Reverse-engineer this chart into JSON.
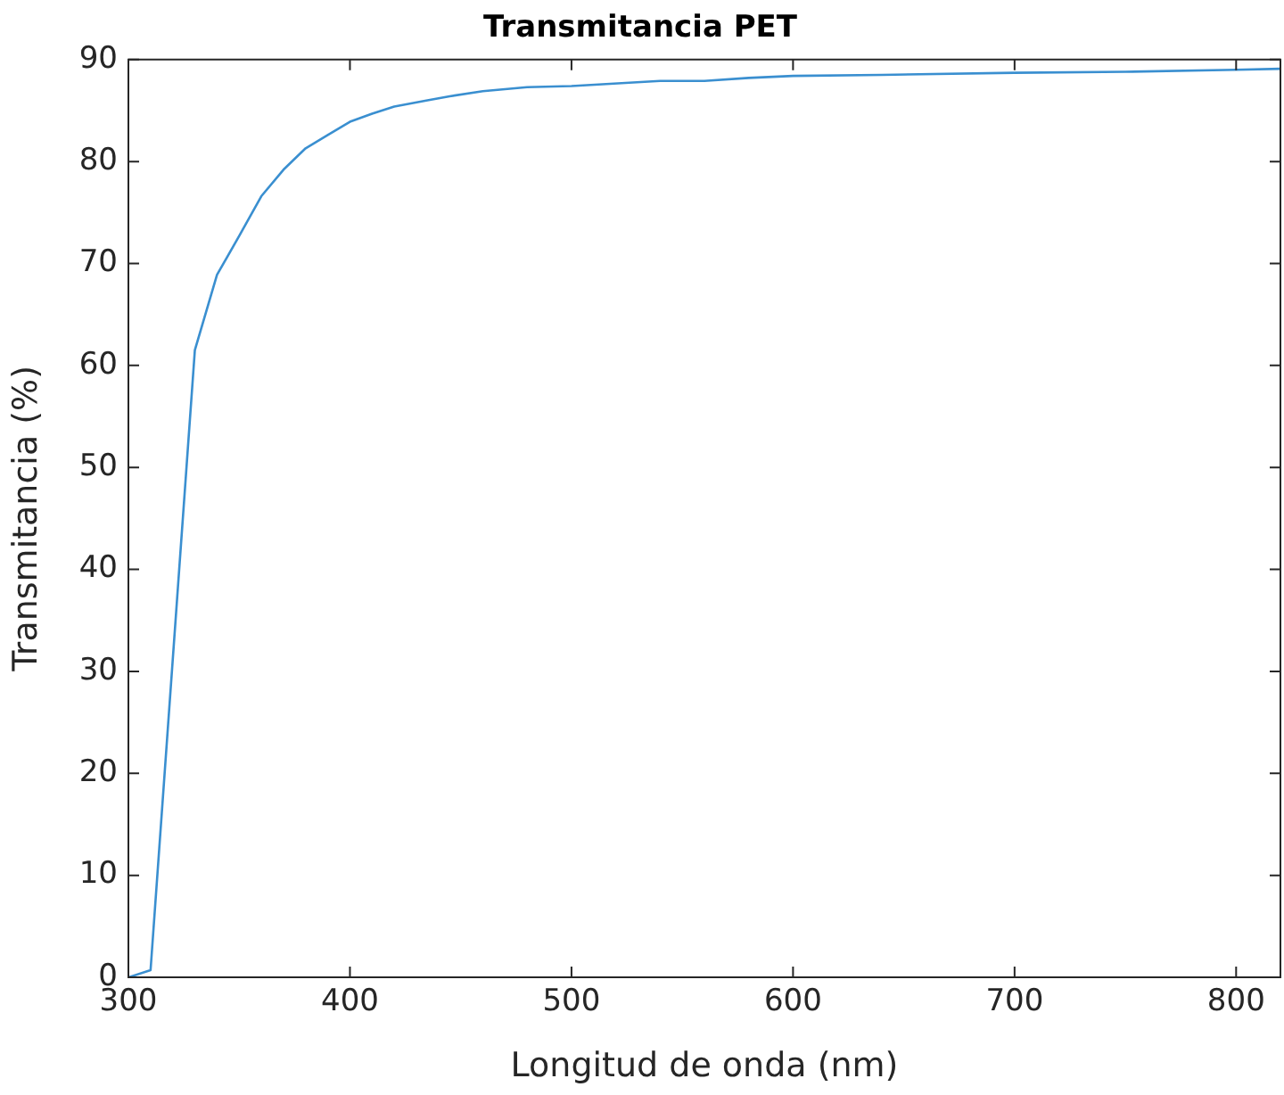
{
  "chart_data": {
    "type": "line",
    "title": "Transmitancia PET",
    "xlabel": "Longitud de onda (nm)",
    "ylabel": "Transmitancia (%)",
    "xlim": [
      300,
      820
    ],
    "xticks": [
      300,
      400,
      500,
      600,
      700,
      800
    ],
    "ylim": [
      0,
      90
    ],
    "yticks": [
      0,
      10,
      20,
      30,
      40,
      50,
      60,
      70,
      80,
      90
    ],
    "grid": false,
    "legend": false,
    "marker": "none",
    "line_style": "solid",
    "series": [
      {
        "color": "#3a8fd0",
        "x": [
          300,
          310,
          330,
          340,
          350,
          360,
          370,
          380,
          390,
          400,
          410,
          420,
          435,
          445,
          460,
          480,
          500,
          540,
          560,
          580,
          600,
          640,
          700,
          750,
          800,
          820
        ],
        "values": [
          0,
          0.7,
          61.5,
          68.9,
          72.7,
          76.6,
          79.2,
          81.3,
          82.6,
          83.9,
          84.7,
          85.4,
          86,
          86.4,
          86.9,
          87.3,
          87.4,
          87.9,
          87.9,
          88.2,
          88.4,
          88.5,
          88.7,
          88.8,
          89,
          89.1
        ]
      }
    ]
  }
}
